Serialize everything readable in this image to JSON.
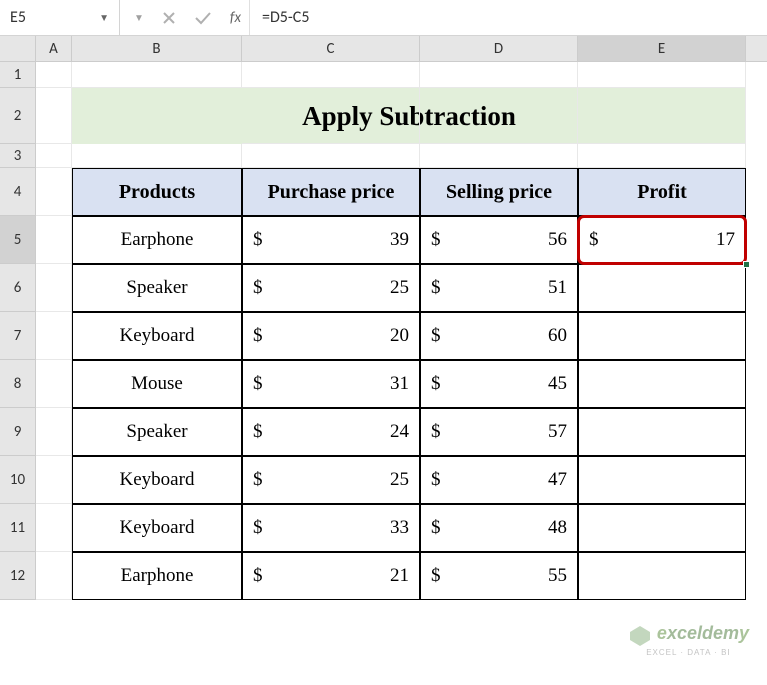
{
  "formula_bar": {
    "cell_ref": "E5",
    "fx_label": "fx",
    "formula": "=D5-C5"
  },
  "columns": [
    "A",
    "B",
    "C",
    "D",
    "E"
  ],
  "selected_column": "E",
  "rows": [
    "1",
    "2",
    "3",
    "4",
    "5",
    "6",
    "7",
    "8",
    "9",
    "10",
    "11",
    "12"
  ],
  "selected_row": "5",
  "title": "Apply Subtraction",
  "table": {
    "headers": [
      "Products",
      "Purchase price",
      "Selling price",
      "Profit"
    ],
    "rows": [
      {
        "product": "Earphone",
        "purchase": 39,
        "selling": 56,
        "profit": 17
      },
      {
        "product": "Speaker",
        "purchase": 25,
        "selling": 51,
        "profit": ""
      },
      {
        "product": "Keyboard",
        "purchase": 20,
        "selling": 60,
        "profit": ""
      },
      {
        "product": "Mouse",
        "purchase": 31,
        "selling": 45,
        "profit": ""
      },
      {
        "product": "Speaker",
        "purchase": 24,
        "selling": 57,
        "profit": ""
      },
      {
        "product": "Keyboard",
        "purchase": 25,
        "selling": 47,
        "profit": ""
      },
      {
        "product": "Keyboard",
        "purchase": 33,
        "selling": 48,
        "profit": ""
      },
      {
        "product": "Earphone",
        "purchase": 21,
        "selling": 55,
        "profit": ""
      }
    ],
    "currency_symbol": "$",
    "header_bg": "#d9e1f2",
    "title_bg": "#e2efda",
    "highlight_border": "#c00000"
  },
  "col_widths": {
    "A": 36,
    "B": 170,
    "C": 178,
    "D": 158,
    "E": 168
  },
  "watermark": {
    "brand": "exceldemy",
    "tagline": "EXCEL · DATA · BI"
  }
}
